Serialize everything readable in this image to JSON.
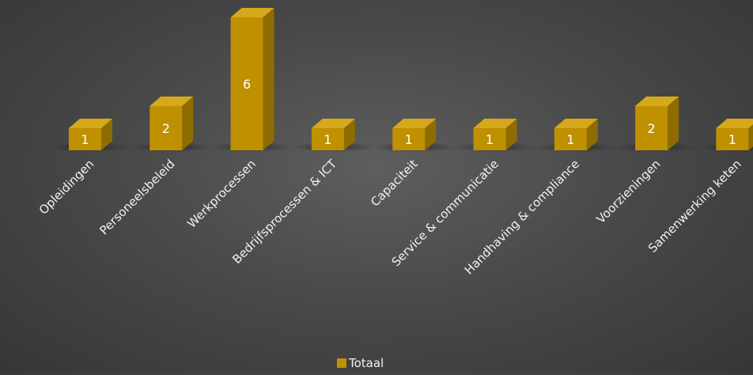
{
  "chart_data": {
    "type": "bar",
    "categories": [
      "Opleidingen",
      "Personeelsbeleid",
      "Werkprocessen",
      "Bedrijfsprocessen & ICT",
      "Capaciteit",
      "Service & communicatie",
      "Handhaving & compliance",
      "Voorzieningen",
      "Samenwerking keten"
    ],
    "series": [
      {
        "name": "Totaal",
        "values": [
          1,
          2,
          6,
          1,
          1,
          1,
          1,
          2,
          1
        ]
      }
    ],
    "ylim": [
      0,
      6
    ],
    "grid": false,
    "legend_position": "bottom",
    "style": "3d-column",
    "colors": {
      "bar_front": "#BF9000",
      "bar_top": "#D6A81C",
      "bar_side": "#8F6C00",
      "label_text": "#FFFFFF",
      "axis_text": "#F2F2F2",
      "legend_swatch": "#BF9000"
    }
  }
}
